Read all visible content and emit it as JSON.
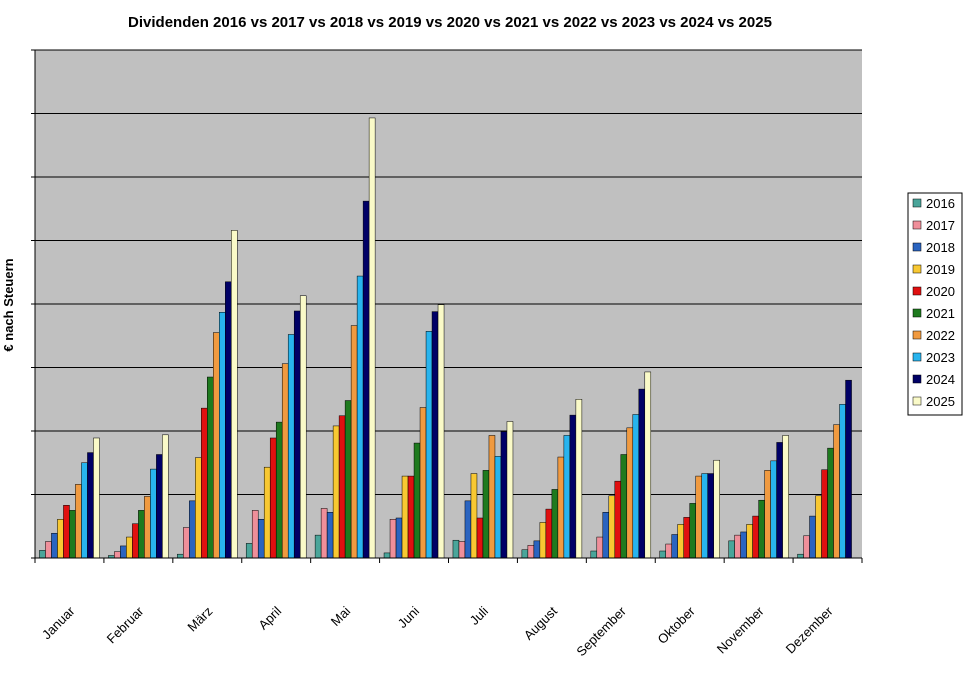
{
  "chart_data": {
    "type": "bar",
    "title": "Dividenden 2016 vs 2017 vs 2018 vs 2019 vs 2020 vs 2021 vs 2022 vs 2023 vs 2024 vs 2025",
    "ylabel": "€ nach Steuern",
    "xlabel": "",
    "ylim": [
      0,
      80
    ],
    "y_tick_labels_shown": false,
    "grid": true,
    "legend_position": "right",
    "categories": [
      "Januar",
      "Februar",
      "März",
      "April",
      "Mai",
      "Juni",
      "Juli",
      "August",
      "September",
      "Oktober",
      "November",
      "Dezember"
    ],
    "series": [
      {
        "name": "2016",
        "color": "#4aa59a",
        "values": [
          1.2,
          0.4,
          0.6,
          2.3,
          3.6,
          0.8,
          2.8,
          1.3,
          1.1,
          1.1,
          2.7,
          0.6
        ]
      },
      {
        "name": "2017",
        "color": "#ef8f9a",
        "values": [
          2.6,
          1.0,
          4.8,
          7.5,
          7.8,
          6.1,
          2.6,
          2.0,
          3.3,
          2.2,
          3.6,
          3.5
        ]
      },
      {
        "name": "2018",
        "color": "#2a64c0",
        "values": [
          3.9,
          1.9,
          9.0,
          6.1,
          7.2,
          6.3,
          9.0,
          2.7,
          7.2,
          3.7,
          4.1,
          6.6
        ]
      },
      {
        "name": "2019",
        "color": "#f8c832",
        "values": [
          6.1,
          3.3,
          15.8,
          14.3,
          20.8,
          12.9,
          13.3,
          5.6,
          9.8,
          5.3,
          5.3,
          9.8
        ]
      },
      {
        "name": "2020",
        "color": "#e01010",
        "values": [
          8.3,
          5.4,
          23.6,
          18.9,
          22.4,
          12.9,
          6.3,
          7.7,
          12.1,
          6.4,
          6.6,
          13.9
        ]
      },
      {
        "name": "2021",
        "color": "#1e7a1e",
        "values": [
          7.5,
          7.5,
          28.5,
          21.4,
          24.8,
          18.1,
          13.8,
          10.8,
          16.3,
          8.6,
          9.1,
          17.3
        ]
      },
      {
        "name": "2022",
        "color": "#f09a40",
        "values": [
          11.6,
          9.7,
          35.5,
          30.6,
          36.6,
          23.7,
          19.3,
          15.9,
          20.5,
          12.9,
          13.8,
          21.0
        ]
      },
      {
        "name": "2023",
        "color": "#28b4ee",
        "values": [
          15.0,
          14.0,
          38.7,
          35.2,
          44.4,
          35.7,
          16.0,
          19.3,
          22.6,
          13.3,
          15.3,
          24.2
        ]
      },
      {
        "name": "2024",
        "color": "#000066",
        "values": [
          16.6,
          16.3,
          43.5,
          38.9,
          56.2,
          38.8,
          19.9,
          22.5,
          26.6,
          13.3,
          18.2,
          28.0
        ]
      },
      {
        "name": "2025",
        "color": "#fafac8",
        "values": [
          18.9,
          19.4,
          51.6,
          41.3,
          69.3,
          39.9,
          21.5,
          25.0,
          29.3,
          15.4,
          19.3,
          0
        ]
      }
    ]
  }
}
